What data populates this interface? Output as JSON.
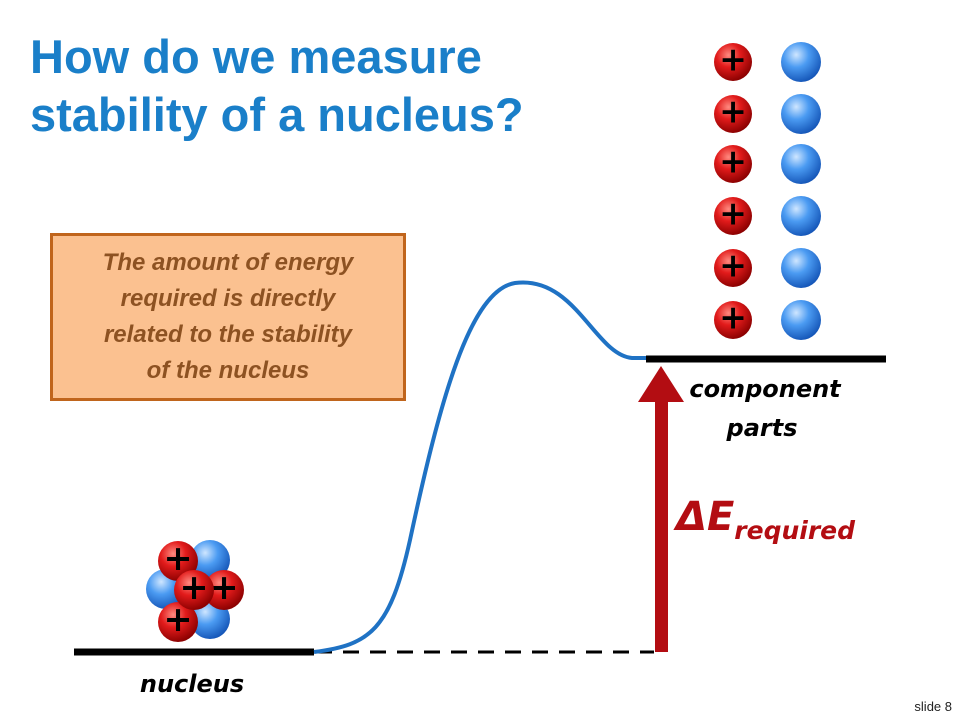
{
  "title": {
    "line1": "How do we measure",
    "line2": "stability of a nucleus?"
  },
  "callout": {
    "lines": [
      "The amount of energy",
      "required is directly",
      "related to the stability",
      "of the nucleus"
    ]
  },
  "labels": {
    "nucleus": "nucleus",
    "component_line1": "component",
    "component_line2": "parts",
    "delta_e": "ΔE",
    "delta_e_subscript": "required"
  },
  "particles": {
    "proton_symbol": "+"
  },
  "slide_number": "slide 8",
  "colors": {
    "title": "#1a7fc9",
    "callout_fill": "#fbc190",
    "callout_border": "#c0651c",
    "callout_text": "#8d5222",
    "curve": "#1f72c4",
    "arrow": "#b30d12",
    "proton": "#d01414",
    "neutron": "#3b8ef0"
  }
}
